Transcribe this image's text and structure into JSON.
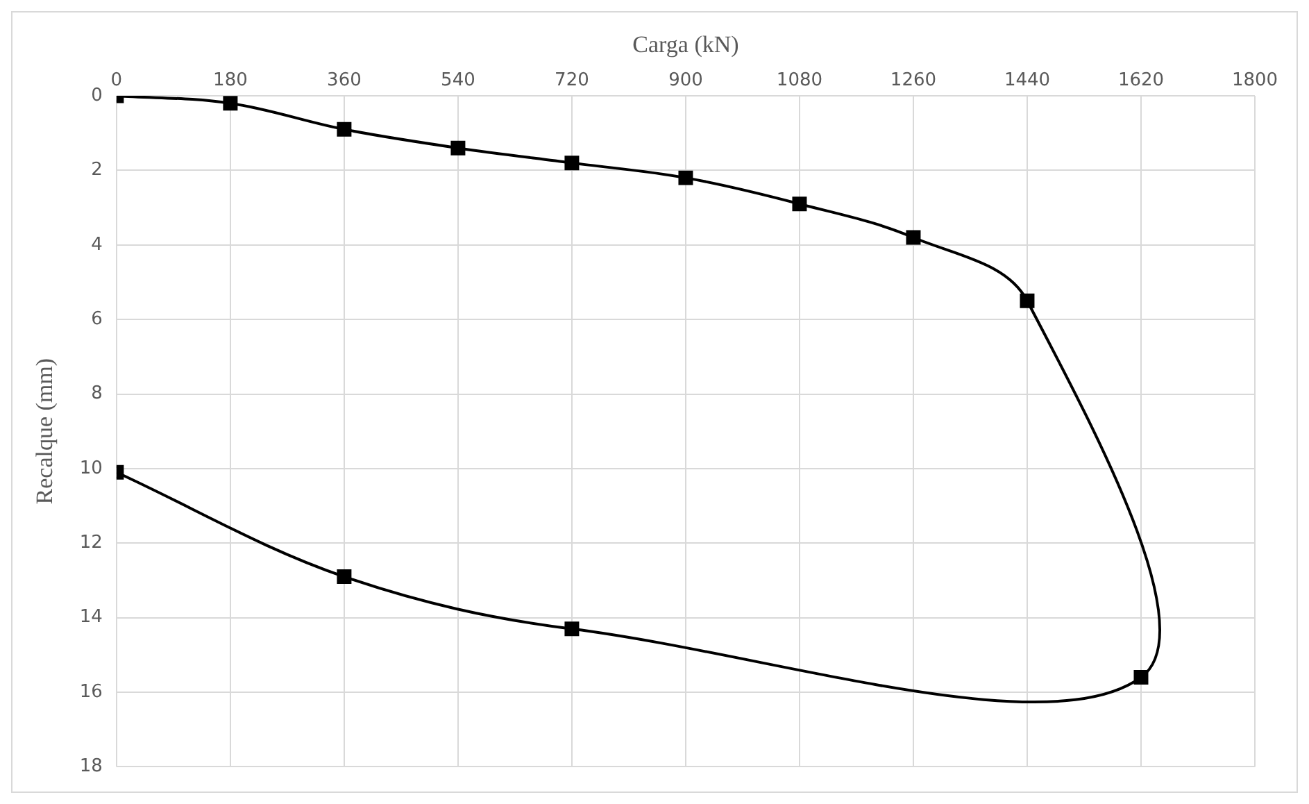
{
  "chart_data": {
    "type": "line",
    "xlabel": "Carga (kN)",
    "ylabel": "Recalque (mm)",
    "x": [
      0,
      180,
      360,
      540,
      720,
      900,
      1080,
      1260,
      1440,
      1620,
      720,
      360,
      0
    ],
    "series": [
      {
        "color": "#000000",
        "values": [
          0,
          0.2,
          0.9,
          1.4,
          1.8,
          2.2,
          2.9,
          3.8,
          5.5,
          15.6,
          14.3,
          12.9,
          10.1
        ]
      }
    ],
    "xlim": [
      0,
      1800
    ],
    "xticks": [
      0,
      180,
      360,
      540,
      720,
      900,
      1080,
      1260,
      1440,
      1620,
      1800
    ],
    "ylim": [
      18,
      0
    ],
    "yticks": [
      0,
      2,
      4,
      6,
      8,
      10,
      12,
      14,
      16,
      18
    ],
    "grid": true,
    "legend": false,
    "marker": "square",
    "line_style": "solid"
  }
}
